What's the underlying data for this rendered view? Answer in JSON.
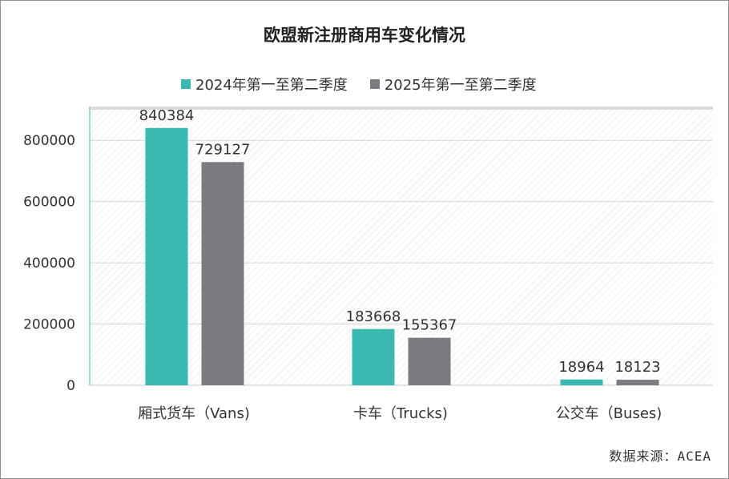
{
  "chart_data": {
    "type": "bar",
    "title": "欧盟新注册商用车变化情况",
    "categories": [
      "厢式货车（Vans)",
      "卡车（Trucks)",
      "公交车（Buses)"
    ],
    "series": [
      {
        "name": "2024年第一至第二季度",
        "color": "#3ab8b2",
        "values": [
          840384,
          183668,
          18964
        ]
      },
      {
        "name": "2025年第一至第二季度",
        "color": "#7b7b82",
        "values": [
          729127,
          155367,
          18123
        ]
      }
    ],
    "ylim": [
      0,
      900000
    ],
    "yticks": [
      0,
      200000,
      400000,
      600000,
      800000
    ],
    "ytick_labels": [
      "0",
      "200000",
      "400000",
      "600000",
      "800000"
    ],
    "legend_position": "top",
    "grid": true,
    "source": "数据来源：ACEA"
  }
}
